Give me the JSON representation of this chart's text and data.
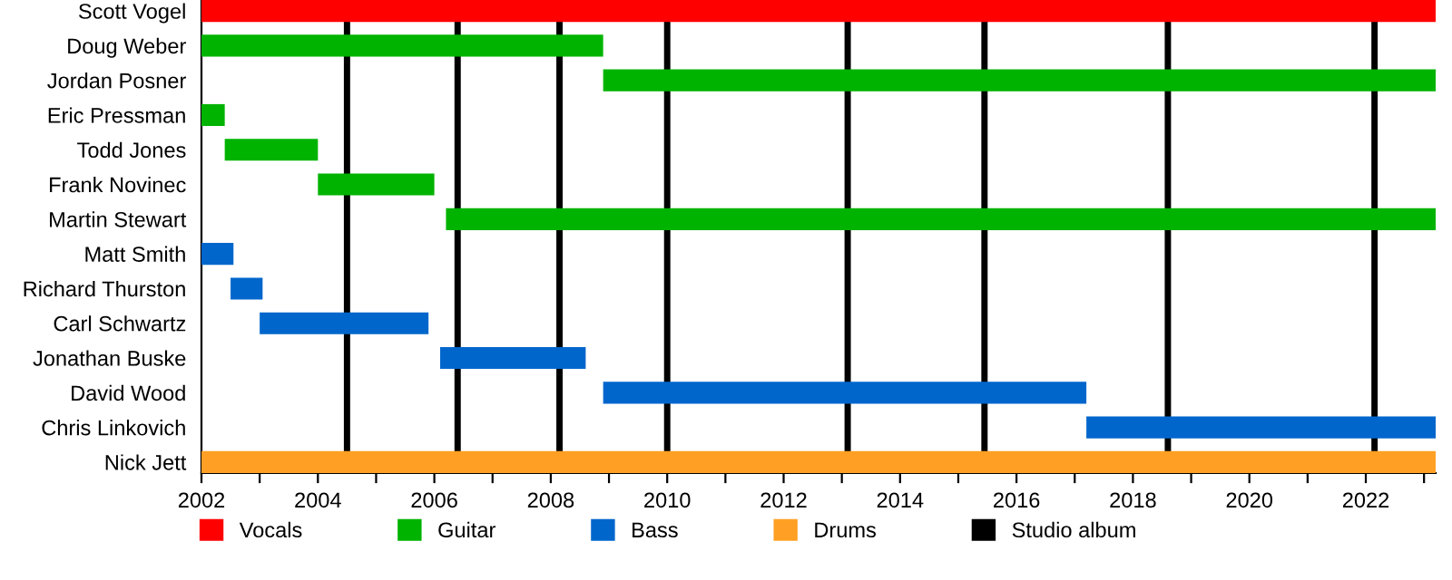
{
  "chart_data": {
    "type": "bar",
    "orientation": "horizontal",
    "categories": [
      "Scott Vogel",
      "Doug Weber",
      "Jordan Posner",
      "Eric Pressman",
      "Todd Jones",
      "Frank Novinec",
      "Martin Stewart",
      "Matt Smith",
      "Richard Thurston",
      "Carl Schwartz",
      "Jonathan Buske",
      "David Wood",
      "Chris Linkovich",
      "Nick Jett"
    ],
    "series": [
      {
        "name": "Vocals",
        "color": "#ff0000",
        "base": [
          2002,
          null,
          null,
          null,
          null,
          null,
          null,
          null,
          null,
          null,
          null,
          null,
          null,
          null
        ],
        "values": [
          21.2,
          null,
          null,
          null,
          null,
          null,
          null,
          null,
          null,
          null,
          null,
          null,
          null,
          null
        ]
      },
      {
        "name": "Guitar",
        "color": "#00b300",
        "base": [
          null,
          2002,
          2008.9,
          2002,
          2002.4,
          2004.0,
          2006.2,
          null,
          null,
          null,
          null,
          null,
          null,
          null
        ],
        "values": [
          null,
          6.9,
          14.3,
          0.4,
          1.6,
          2.0,
          17.0,
          null,
          null,
          null,
          null,
          null,
          null,
          null
        ]
      },
      {
        "name": "Bass",
        "color": "#0066cc",
        "base": [
          null,
          null,
          null,
          null,
          null,
          null,
          null,
          2002,
          2002.5,
          2003.0,
          2006.1,
          2008.9,
          2017.2,
          null
        ],
        "values": [
          null,
          null,
          null,
          null,
          null,
          null,
          null,
          0.55,
          0.55,
          2.9,
          2.5,
          8.3,
          6.0,
          null
        ]
      },
      {
        "name": "Drums",
        "color": "#ffa024",
        "base": [
          null,
          null,
          null,
          null,
          null,
          null,
          null,
          null,
          null,
          null,
          null,
          null,
          null,
          2002
        ],
        "values": [
          null,
          null,
          null,
          null,
          null,
          null,
          null,
          null,
          null,
          null,
          null,
          null,
          null,
          21.2
        ]
      }
    ],
    "ref_lines": [
      {
        "axis": "x",
        "value": 2004.5,
        "label": "Studio album",
        "color": "#000000"
      },
      {
        "axis": "x",
        "value": 2006.4,
        "color": "#000000"
      },
      {
        "axis": "x",
        "value": 2008.15,
        "color": "#000000"
      },
      {
        "axis": "x",
        "value": 2010.0,
        "color": "#000000"
      },
      {
        "axis": "x",
        "value": 2013.1,
        "color": "#000000"
      },
      {
        "axis": "x",
        "value": 2015.45,
        "color": "#000000"
      },
      {
        "axis": "x",
        "value": 2018.6,
        "color": "#000000"
      },
      {
        "axis": "x",
        "value": 2022.15,
        "color": "#000000"
      }
    ],
    "xlim": [
      2002,
      2023.2
    ],
    "xticks": [
      2002,
      {
        "value": 2003,
        "label": null
      },
      2004,
      {
        "value": 2005,
        "label": null
      },
      2006,
      {
        "value": 2007,
        "label": null
      },
      2008,
      {
        "value": 2009,
        "label": null
      },
      2010,
      {
        "value": 2011,
        "label": null
      },
      2012,
      {
        "value": 2013,
        "label": null
      },
      2014,
      {
        "value": 2015,
        "label": null
      },
      2016,
      {
        "value": 2017,
        "label": null
      },
      2018,
      {
        "value": 2019,
        "label": null
      },
      2020,
      {
        "value": 2021,
        "label": null
      },
      2022,
      {
        "value": 2023,
        "label": null
      }
    ],
    "grid": false,
    "legend": "bottom"
  }
}
